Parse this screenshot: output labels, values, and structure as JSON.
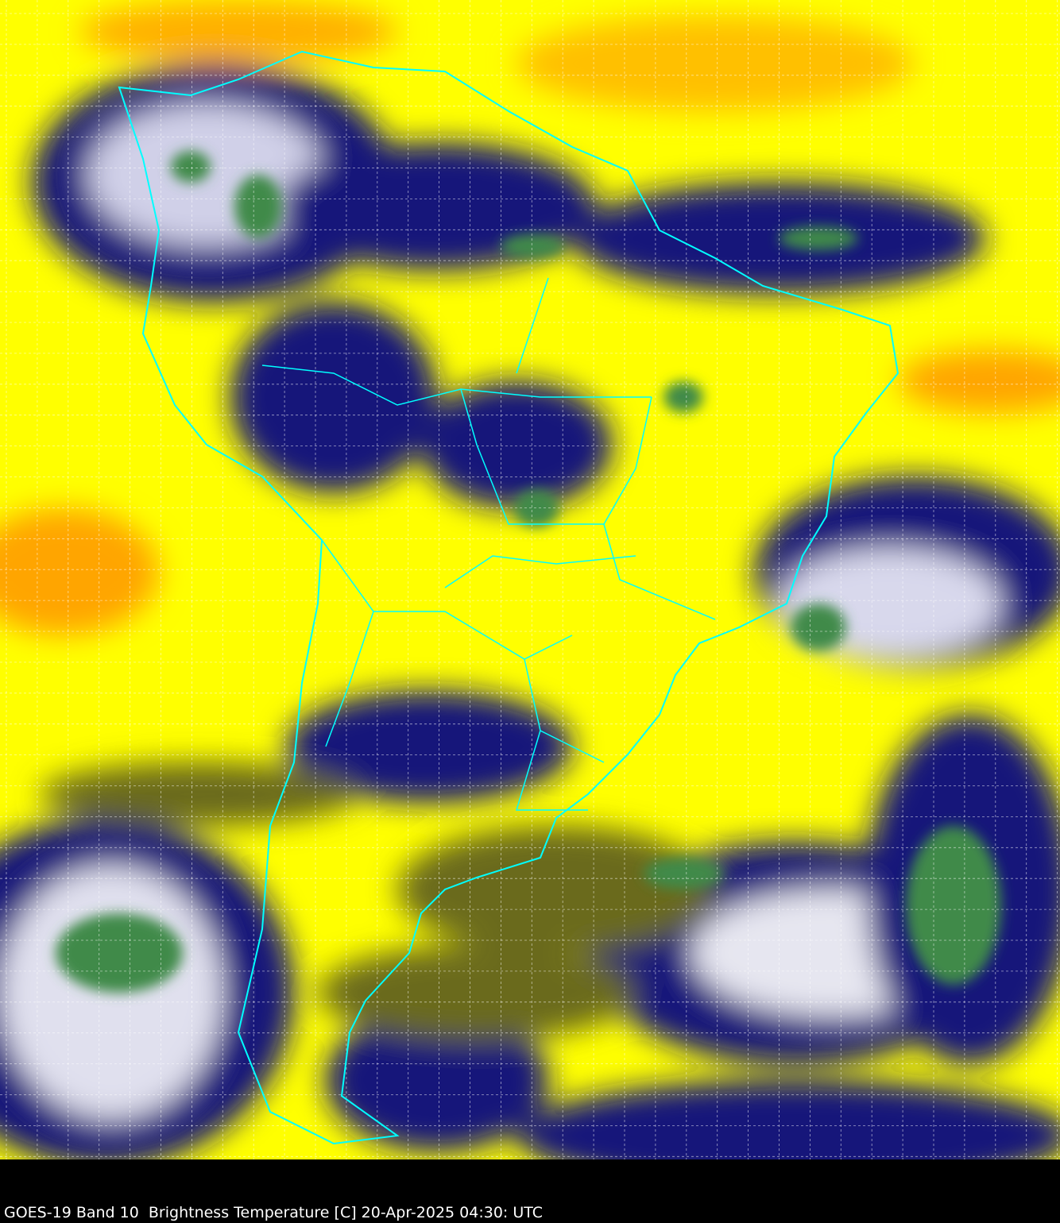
{
  "caption": "GOES-19 Band 10  Brightness Temperature [C] 20-Apr-2025 04:30: UTC",
  "colors": {
    "warm_yellow": "#ffff00",
    "hot_orange": "#ffa500",
    "olive": "#6b6b1e",
    "cold_navy": "#14147a",
    "white_cloud": "#e8e8f0",
    "cold_green": "#3f8a4a",
    "boundaries": "#00ffff",
    "grid": "#ffffff"
  }
}
